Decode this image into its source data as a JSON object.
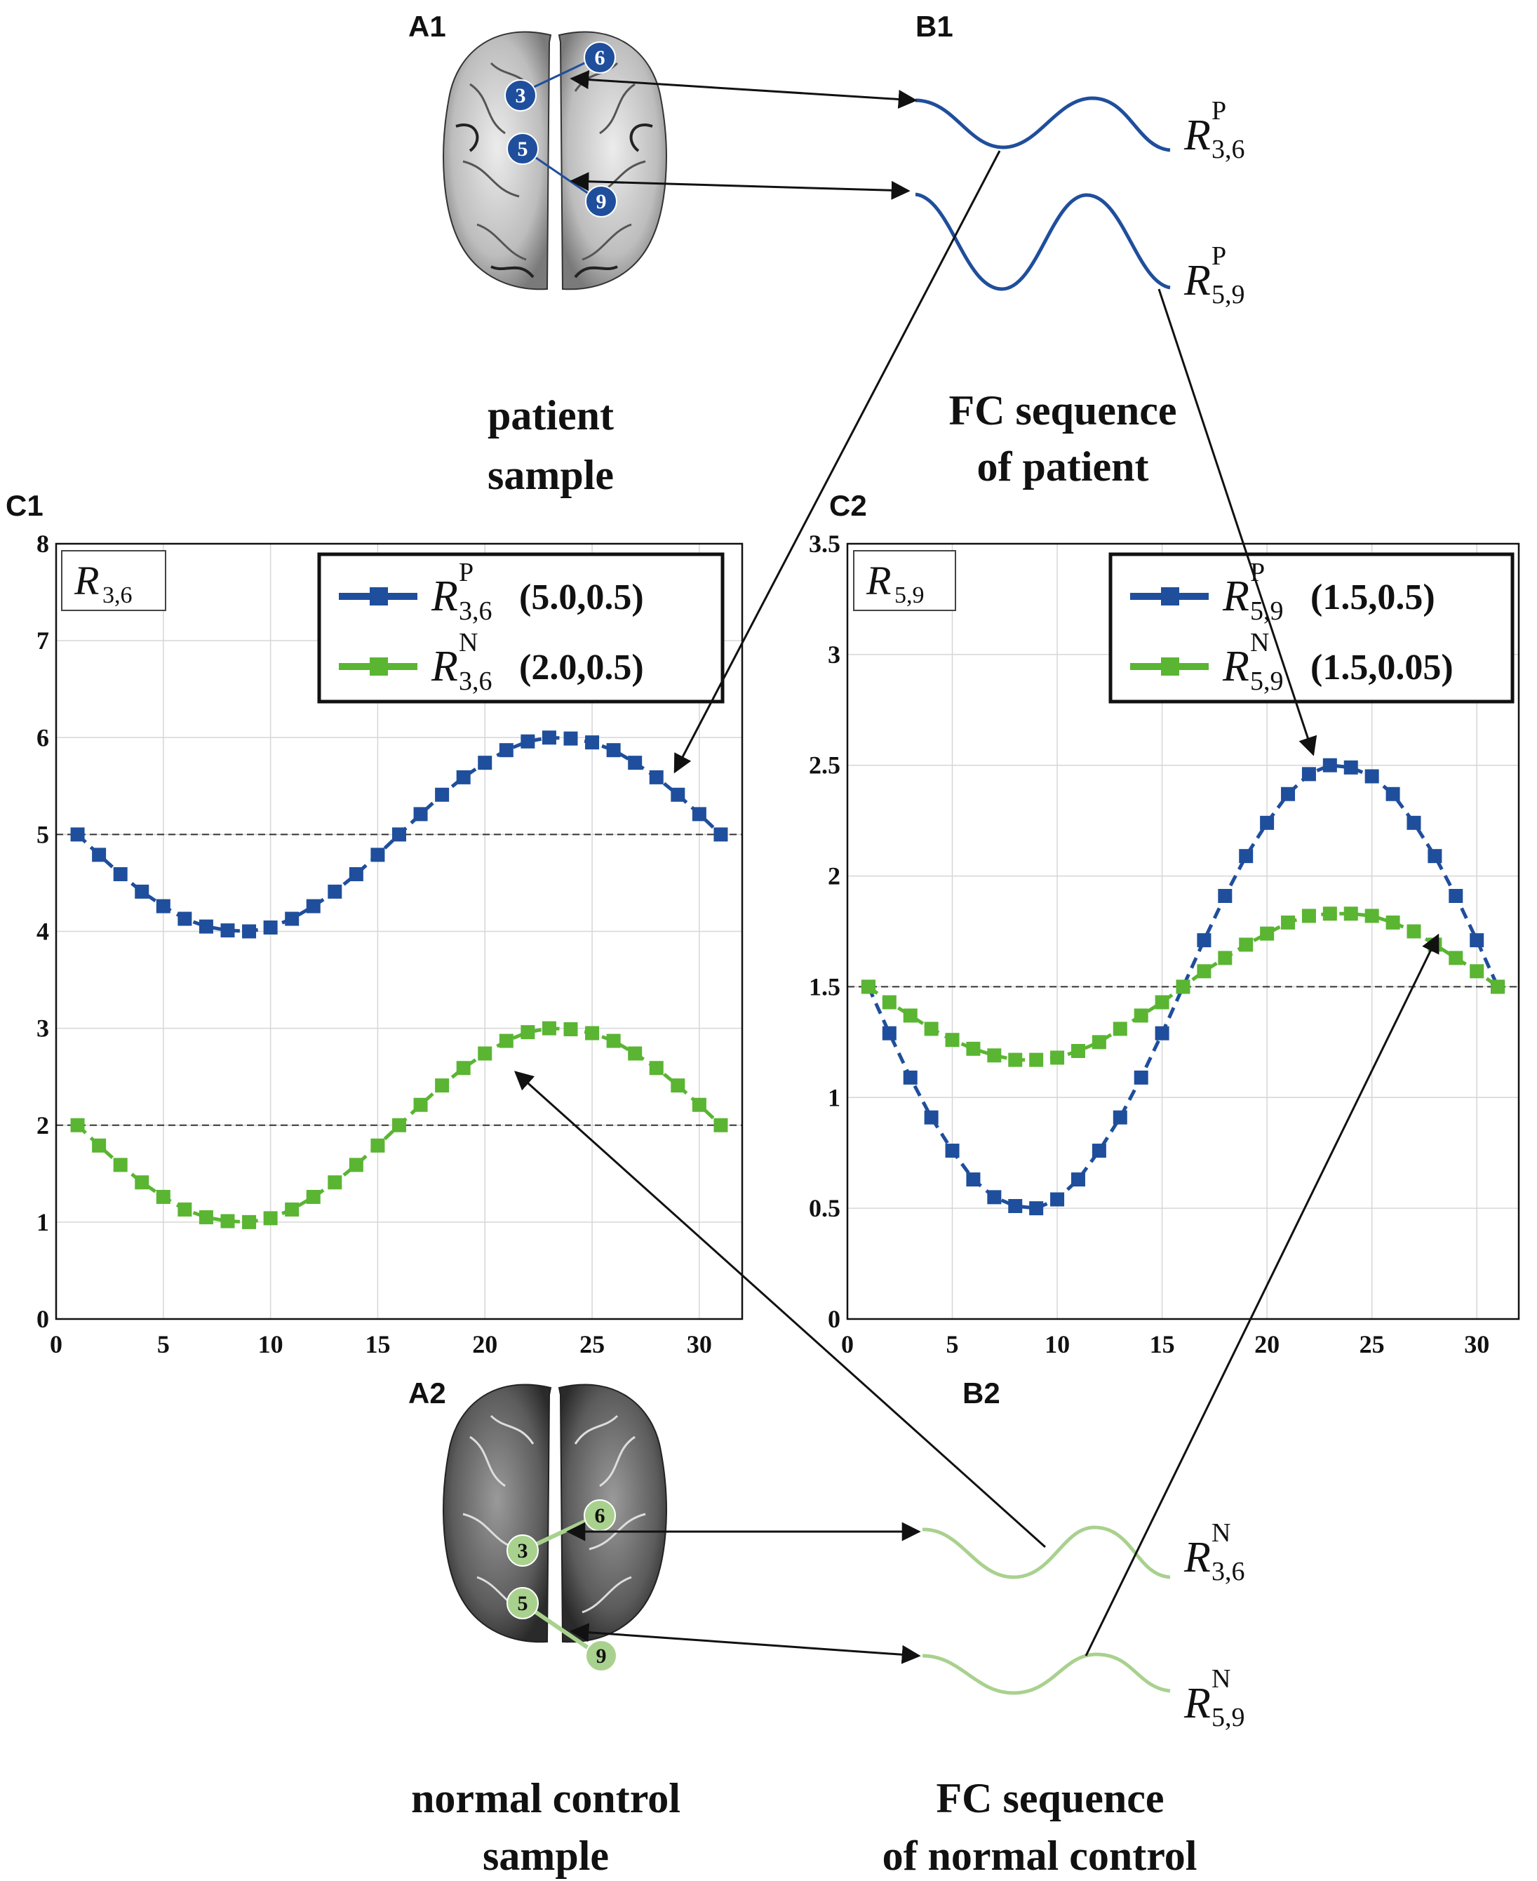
{
  "panels": {
    "A1": "A1",
    "B1": "B1",
    "C1": "C1",
    "C2": "C2",
    "A2": "A2",
    "B2": "B2"
  },
  "captions": {
    "patient_sample": [
      "patient",
      "sample"
    ],
    "fc_patient": [
      "FC sequence",
      "of patient"
    ],
    "normal_sample": [
      "normal control",
      "sample"
    ],
    "fc_normal": [
      "FC sequence",
      "of normal control"
    ]
  },
  "colors": {
    "patient": "#1f4e9c",
    "normal": "#5ab532",
    "normal_light": "#a9d18e",
    "ref_line": "#333333"
  },
  "brain_nodes": {
    "patient": [
      "6",
      "3",
      "5",
      "9"
    ],
    "normal": [
      "6",
      "3",
      "5",
      "9"
    ]
  },
  "wave_labels": {
    "B1_top": {
      "R": "R",
      "sup": "P",
      "sub": "3,6"
    },
    "B1_bottom": {
      "R": "R",
      "sup": "P",
      "sub": "5,9"
    },
    "B2_top": {
      "R": "R",
      "sup": "N",
      "sub": "3,6"
    },
    "B2_bottom": {
      "R": "R",
      "sup": "N",
      "sub": "5,9"
    }
  },
  "chart_data": [
    {
      "id": "C1",
      "type": "line",
      "title_box": {
        "R": "R",
        "sub": "3,6"
      },
      "xlim": [
        0,
        32
      ],
      "ylim": [
        0,
        8
      ],
      "xticks": [
        "0",
        "5",
        "10",
        "15",
        "20",
        "25",
        "30"
      ],
      "yticks": [
        "0",
        "1",
        "2",
        "3",
        "4",
        "5",
        "6",
        "7",
        "8"
      ],
      "grid": true,
      "legend_position": "top-right",
      "reference_lines": [
        5,
        2
      ],
      "series": [
        {
          "name": "R^P_{3,6}",
          "legend": {
            "R": "R",
            "sup": "P",
            "sub": "3,6",
            "params": "(5.0,0.5)"
          },
          "x": [
            1,
            2,
            3,
            4,
            5,
            6,
            7,
            8,
            9,
            10,
            11,
            12,
            13,
            14,
            15,
            16,
            17,
            18,
            19,
            20,
            21,
            22,
            23,
            24,
            25,
            26,
            27,
            28,
            29,
            30,
            31
          ],
          "values": [
            5.0,
            4.79,
            4.59,
            4.41,
            4.26,
            4.13,
            4.05,
            4.01,
            4.0,
            4.04,
            4.13,
            4.26,
            4.41,
            4.59,
            4.79,
            5.0,
            5.21,
            5.41,
            5.59,
            5.74,
            5.87,
            5.96,
            6.0,
            5.99,
            5.95,
            5.87,
            5.74,
            5.59,
            5.41,
            5.21,
            5.0
          ]
        },
        {
          "name": "R^N_{3,6}",
          "legend": {
            "R": "R",
            "sup": "N",
            "sub": "3,6",
            "params": "(2.0,0.5)"
          },
          "x": [
            1,
            2,
            3,
            4,
            5,
            6,
            7,
            8,
            9,
            10,
            11,
            12,
            13,
            14,
            15,
            16,
            17,
            18,
            19,
            20,
            21,
            22,
            23,
            24,
            25,
            26,
            27,
            28,
            29,
            30,
            31
          ],
          "values": [
            2.0,
            1.79,
            1.59,
            1.41,
            1.26,
            1.13,
            1.05,
            1.01,
            1.0,
            1.04,
            1.13,
            1.26,
            1.41,
            1.59,
            1.79,
            2.0,
            2.21,
            2.41,
            2.59,
            2.74,
            2.87,
            2.96,
            3.0,
            2.99,
            2.95,
            2.87,
            2.74,
            2.59,
            2.41,
            2.21,
            2.0
          ]
        }
      ]
    },
    {
      "id": "C2",
      "type": "line",
      "title_box": {
        "R": "R",
        "sub": "5,9"
      },
      "xlim": [
        0,
        32
      ],
      "ylim": [
        0,
        3.5
      ],
      "xticks": [
        "0",
        "5",
        "10",
        "15",
        "20",
        "25",
        "30"
      ],
      "yticks": [
        "0",
        "0.5",
        "1",
        "1.5",
        "2",
        "2.5",
        "3",
        "3.5"
      ],
      "grid": true,
      "legend_position": "top-right",
      "reference_lines": [
        1.5
      ],
      "series": [
        {
          "name": "R^P_{5,9}",
          "legend": {
            "R": "R",
            "sup": "P",
            "sub": "5,9",
            "params": "(1.5,0.5)"
          },
          "x": [
            1,
            2,
            3,
            4,
            5,
            6,
            7,
            8,
            9,
            10,
            11,
            12,
            13,
            14,
            15,
            16,
            17,
            18,
            19,
            20,
            21,
            22,
            23,
            24,
            25,
            26,
            27,
            28,
            29,
            30,
            31
          ],
          "values": [
            1.5,
            1.29,
            1.09,
            0.91,
            0.76,
            0.63,
            0.55,
            0.51,
            0.5,
            0.54,
            0.63,
            0.76,
            0.91,
            1.09,
            1.29,
            1.5,
            1.71,
            1.91,
            2.09,
            2.24,
            2.37,
            2.46,
            2.5,
            2.49,
            2.45,
            2.37,
            2.24,
            2.09,
            1.91,
            1.71,
            1.5
          ]
        },
        {
          "name": "R^N_{5,9}",
          "legend": {
            "R": "R",
            "sup": "N",
            "sub": "5,9",
            "params": "(1.5,0.05)"
          },
          "x": [
            1,
            2,
            3,
            4,
            5,
            6,
            7,
            8,
            9,
            10,
            11,
            12,
            13,
            14,
            15,
            16,
            17,
            18,
            19,
            20,
            21,
            22,
            23,
            24,
            25,
            26,
            27,
            28,
            29,
            30,
            31
          ],
          "values": [
            1.5,
            1.43,
            1.37,
            1.31,
            1.26,
            1.22,
            1.19,
            1.17,
            1.17,
            1.18,
            1.21,
            1.25,
            1.31,
            1.37,
            1.43,
            1.5,
            1.57,
            1.63,
            1.69,
            1.74,
            1.79,
            1.82,
            1.83,
            1.83,
            1.82,
            1.79,
            1.75,
            1.69,
            1.63,
            1.57,
            1.5
          ]
        }
      ]
    }
  ]
}
